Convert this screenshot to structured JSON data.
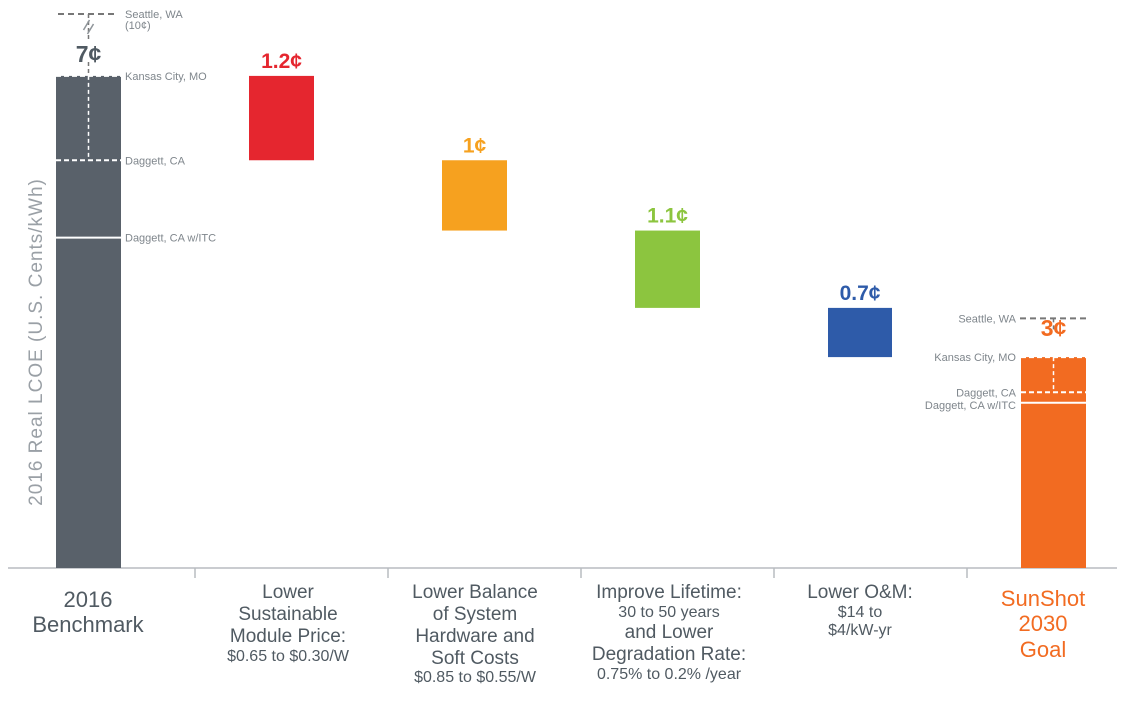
{
  "chart_data": {
    "type": "waterfall",
    "ylabel": "2016 Real LCOE (U.S. Cents/kWh)",
    "colors": {
      "benchmark": "#59616a",
      "module": "#e5262f",
      "bos": "#f6a11f",
      "lifetime": "#8cc53f",
      "om": "#2e5ba9",
      "goal": "#f26b21",
      "label_gray": "#7f868c",
      "dashed": "#777777"
    },
    "bars": [
      {
        "id": "benchmark",
        "label_value": "7¢",
        "base": 0,
        "top": 7.0
      },
      {
        "id": "module",
        "label_value": "1.2¢",
        "base": 5.8,
        "top": 7.0
      },
      {
        "id": "bos",
        "label_value": "1¢",
        "base": 4.8,
        "top": 5.8
      },
      {
        "id": "lifetime",
        "label_value": "1.1¢",
        "base": 3.7,
        "top": 4.8
      },
      {
        "id": "om",
        "label_value": "0.7¢",
        "base": 3.0,
        "top": 3.7
      },
      {
        "id": "goal",
        "label_value": "3¢",
        "base": 0,
        "top": 3.0
      }
    ],
    "benchmark_locations": [
      {
        "label": "Seattle, WA",
        "sublabel": "(10¢)",
        "value": 10
      },
      {
        "label": "Kansas City, MO",
        "value": 7.0
      },
      {
        "label": "Daggett, CA",
        "value": 5.8
      },
      {
        "label": "Daggett, CA w/ITC",
        "value": 4.7
      }
    ],
    "goal_locations": [
      {
        "label": "Seattle, WA",
        "value": 3.55
      },
      {
        "label": "Kansas City, MO",
        "value": 3.0
      },
      {
        "label": "Daggett, CA",
        "value": 2.5
      },
      {
        "label": "Daggett, CA w/ITC",
        "value": 2.35
      }
    ],
    "categories": [
      {
        "id": "benchmark",
        "lines": [
          "2016",
          "Benchmark"
        ]
      },
      {
        "id": "module",
        "lines": [
          "Lower",
          "Sustainable",
          "Module Price:",
          "$0.65 to $0.30/W"
        ]
      },
      {
        "id": "bos",
        "lines": [
          "Lower Balance",
          "of System",
          "Hardware and",
          "Soft Costs",
          "$0.85 to $0.55/W"
        ]
      },
      {
        "id": "lifetime",
        "lines": [
          "Improve Lifetime:",
          "30 to 50 years",
          "and Lower",
          "Degradation Rate:",
          "0.75% to 0.2% /year"
        ]
      },
      {
        "id": "om",
        "lines": [
          "Lower O&M:",
          "$14 to",
          "$4/kW-yr"
        ]
      },
      {
        "id": "goal",
        "lines": [
          "SunShot",
          "2030",
          "Goal"
        ]
      }
    ]
  }
}
